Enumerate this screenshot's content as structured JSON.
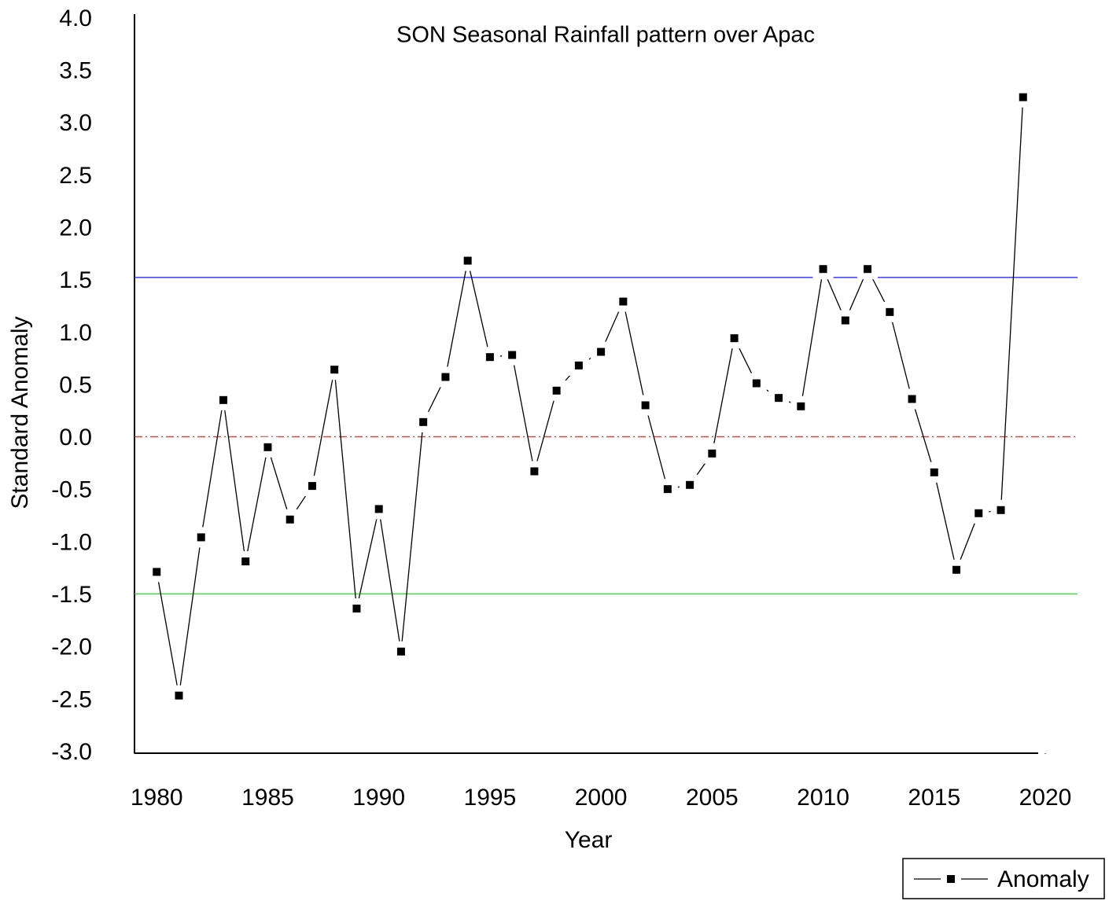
{
  "chart_data": {
    "type": "line",
    "title": "SON Seasonal Rainfall pattern over Apac",
    "x_label": "Year",
    "y_label": "Standard Anomaly",
    "x": [
      1980,
      1981,
      1982,
      1983,
      1984,
      1985,
      1986,
      1987,
      1988,
      1989,
      1990,
      1991,
      1992,
      1993,
      1994,
      1995,
      1996,
      1997,
      1998,
      1999,
      2000,
      2001,
      2002,
      2003,
      2004,
      2005,
      2006,
      2007,
      2008,
      2009,
      2010,
      2011,
      2012,
      2013,
      2014,
      2015,
      2016,
      2017,
      2018,
      2019
    ],
    "series": [
      {
        "name": "Anomaly",
        "color": "#000000",
        "values": [
          -1.27,
          -2.45,
          -0.94,
          0.37,
          -1.17,
          -0.08,
          -0.77,
          -0.45,
          0.66,
          -1.62,
          -0.67,
          -2.03,
          0.16,
          0.59,
          1.7,
          0.78,
          0.8,
          -0.31,
          0.46,
          0.7,
          0.83,
          1.31,
          0.32,
          -0.48,
          -0.44,
          -0.14,
          0.96,
          0.53,
          0.39,
          0.31,
          1.62,
          1.13,
          1.62,
          1.21,
          0.38,
          -0.32,
          -1.25,
          -0.71,
          -0.68,
          3.26
        ]
      }
    ],
    "reference_lines": [
      {
        "value": 1.54,
        "color": "#3c3cff",
        "style": "solid"
      },
      {
        "value": 0.02,
        "color": "#ff3030",
        "style": "dashdot"
      },
      {
        "value": -1.48,
        "color": "#22ee22",
        "style": "solid"
      }
    ],
    "xlim": [
      1979,
      2020
    ],
    "xticks": [
      1980,
      1985,
      1990,
      1995,
      2000,
      2005,
      2010,
      2015,
      2020
    ],
    "ylim": [
      -3,
      4
    ],
    "yticks": [
      {
        "value": 4,
        "label": "4.0"
      },
      3.5,
      {
        "value": 3,
        "label": "3.0"
      },
      2.5,
      {
        "value": 2,
        "label": "2.0"
      },
      1.5,
      {
        "value": 1,
        "label": "1.0"
      },
      0.5,
      {
        "value": 0,
        "label": "0.0"
      },
      -0.5,
      {
        "value": -1,
        "label": "-1.0"
      },
      -1.5,
      {
        "value": -2,
        "label": "-2.0"
      },
      -2.5,
      {
        "value": -3,
        "label": "-3.0"
      }
    ],
    "legend": "bottom-right"
  }
}
